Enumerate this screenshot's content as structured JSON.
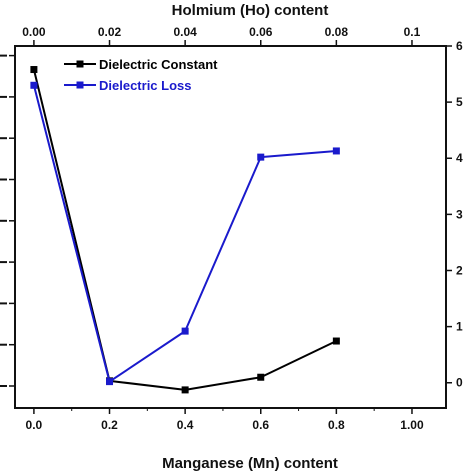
{
  "chart_data": {
    "type": "line",
    "xlabel": "Manganese (Mn) content",
    "x2label": "Holmium (Ho) content",
    "xlim": [
      -0.05,
      1.09
    ],
    "x2lim": [
      -0.005,
      0.109
    ],
    "xticks": [
      "0.0",
      "0.2",
      "0.4",
      "0.6",
      "0.8",
      "1.00"
    ],
    "x2ticks": [
      "0.00",
      "0.02",
      "0.04",
      "0.06",
      "0.08",
      "0.1"
    ],
    "y2lim": [
      -0.45,
      6.0
    ],
    "y2ticks": [
      "0",
      "1",
      "2",
      "3",
      "4",
      "5",
      "6"
    ],
    "grid": false,
    "legend_position": "top-left",
    "series": [
      {
        "name": "Dielectric Constant",
        "color": "#000000",
        "axis": "left",
        "x": [
          0.0,
          0.2,
          0.4,
          0.6,
          0.8
        ],
        "y_relative": [
          0.935,
          0.075,
          0.05,
          0.085,
          0.185
        ]
      },
      {
        "name": "Dielectric Loss",
        "color": "#1a1acc",
        "axis": "right",
        "x": [
          0.0,
          0.2,
          0.4,
          0.6,
          0.8
        ],
        "y": [
          5.3,
          0.02,
          0.92,
          4.02,
          4.13
        ]
      }
    ]
  }
}
